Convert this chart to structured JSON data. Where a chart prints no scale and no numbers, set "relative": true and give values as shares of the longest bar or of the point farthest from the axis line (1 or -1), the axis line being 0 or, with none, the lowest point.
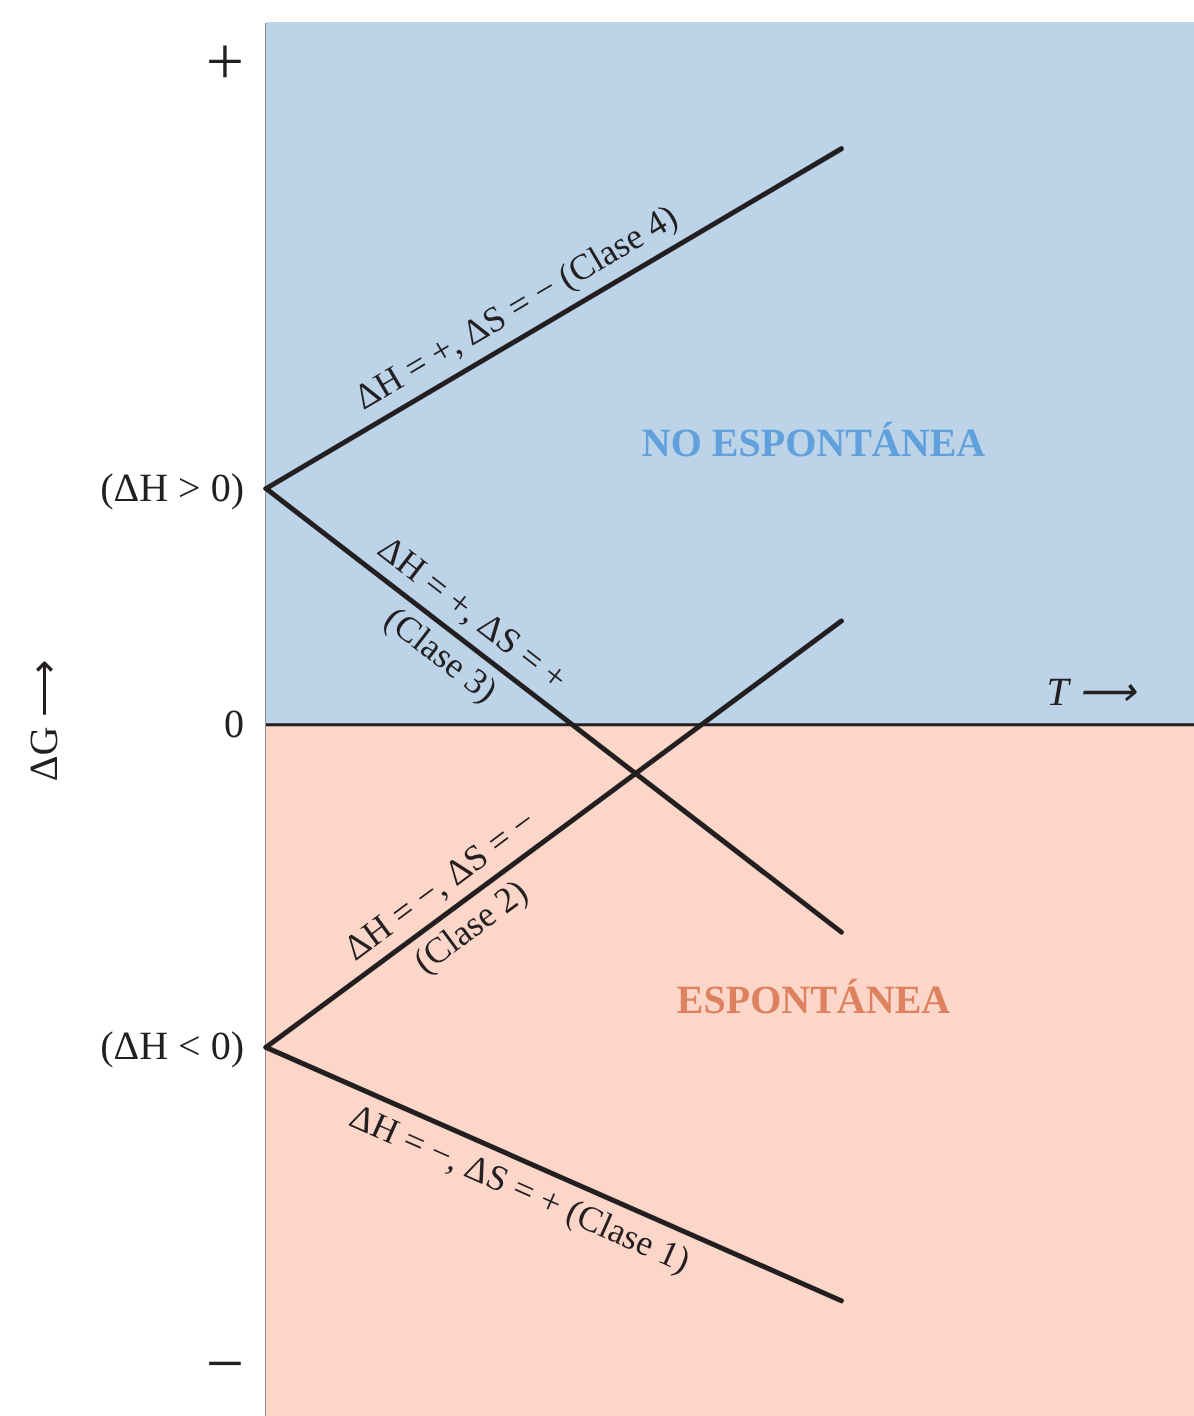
{
  "chart_data": {
    "type": "line",
    "relative": true,
    "categories": [
      null,
      null
    ],
    "series": [
      {
        "name": "ΔH = +, ΔS = − (Clase 4)",
        "color": "#231f20",
        "values": [
          0.41,
          1.0
        ]
      },
      {
        "name": "ΔH = +, ΔS = +\n(Clase 3)",
        "color": "#231f20",
        "values": [
          0.41,
          -0.36
        ]
      },
      {
        "name": "ΔH = −, ΔS = −\n(Clase 2)",
        "color": "#231f20",
        "values": [
          -0.56,
          0.18
        ]
      },
      {
        "name": "ΔH = −, ΔS = + (Clase 1)",
        "color": "#231f20",
        "values": [
          -0.56,
          -1
        ]
      }
    ],
    "xlabel": "T ⟶",
    "ylabel": "ΔG ⟶",
    "annotations": [
      "+",
      "(ΔH > 0)",
      "(ΔH < 0)",
      "−"
    ],
    "ref_lines": [
      {
        "axis": "y",
        "value": 0,
        "label": "0",
        "color": "#231f20"
      }
    ],
    "bands": [
      {
        "axis": "y",
        "from": 0,
        "to": 1.22,
        "label": "NO ESPONTÁNEA",
        "color": "#bcd3e8"
      },
      {
        "axis": "y",
        "from": -1.2,
        "to": 0,
        "label": "ESPONTÁNEA",
        "color": "#fcd6c8"
      }
    ],
    "line_style": "solid"
  }
}
